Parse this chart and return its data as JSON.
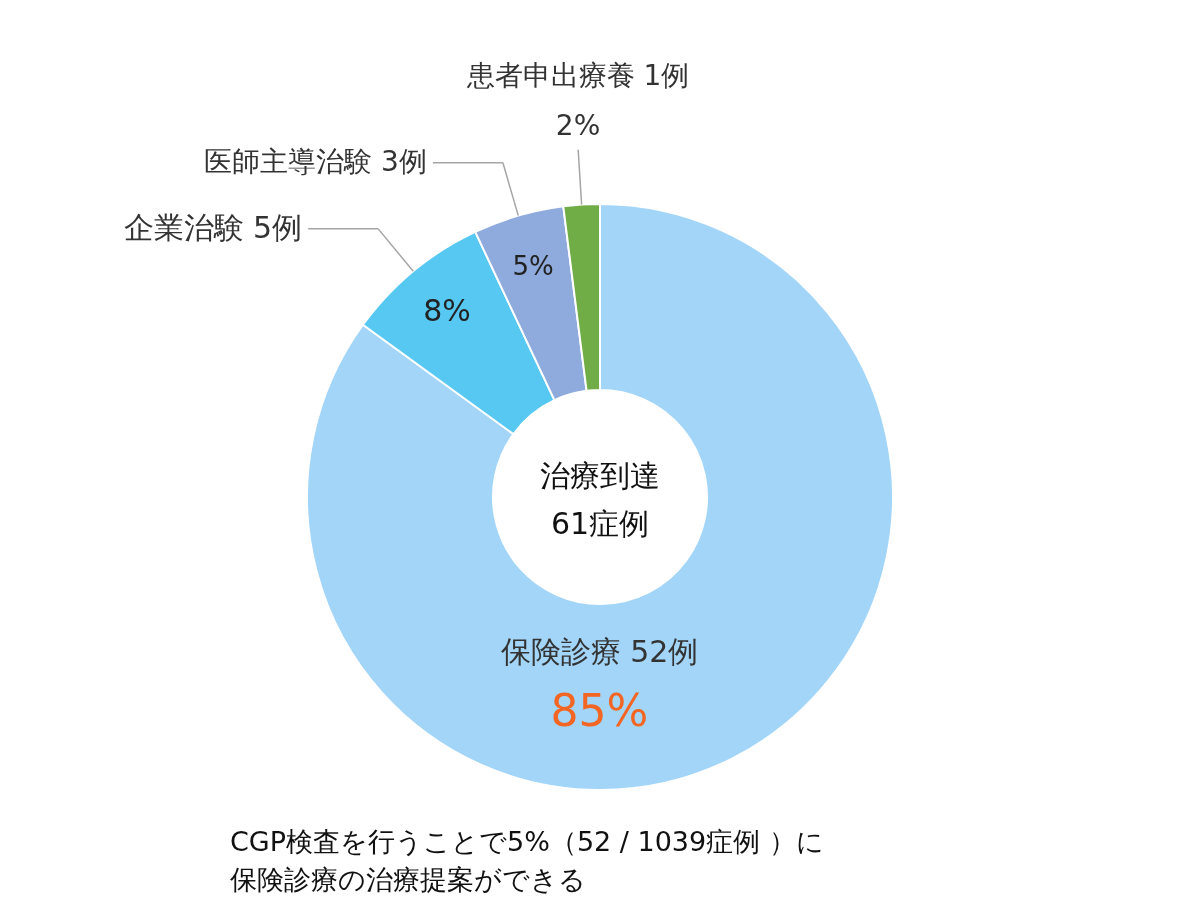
{
  "chart_data": {
    "type": "donut",
    "categories": [
      "保険診療 52例",
      "企業治験 5例",
      "医師主導治験 3例",
      "患者申出療養 1例"
    ],
    "values": [
      85,
      8,
      5,
      2
    ],
    "value_labels": [
      "85%",
      "8%",
      "5%",
      "2%"
    ],
    "colors": [
      "#a3d5f8",
      "#56c8f2",
      "#8faadc",
      "#70ad47"
    ],
    "legend": false,
    "annotations": [
      "治療到達\n61症例",
      "CGP検査を行うことで5%（52 / 1039症例 ）に",
      "保険診療の治療提案ができる"
    ]
  }
}
